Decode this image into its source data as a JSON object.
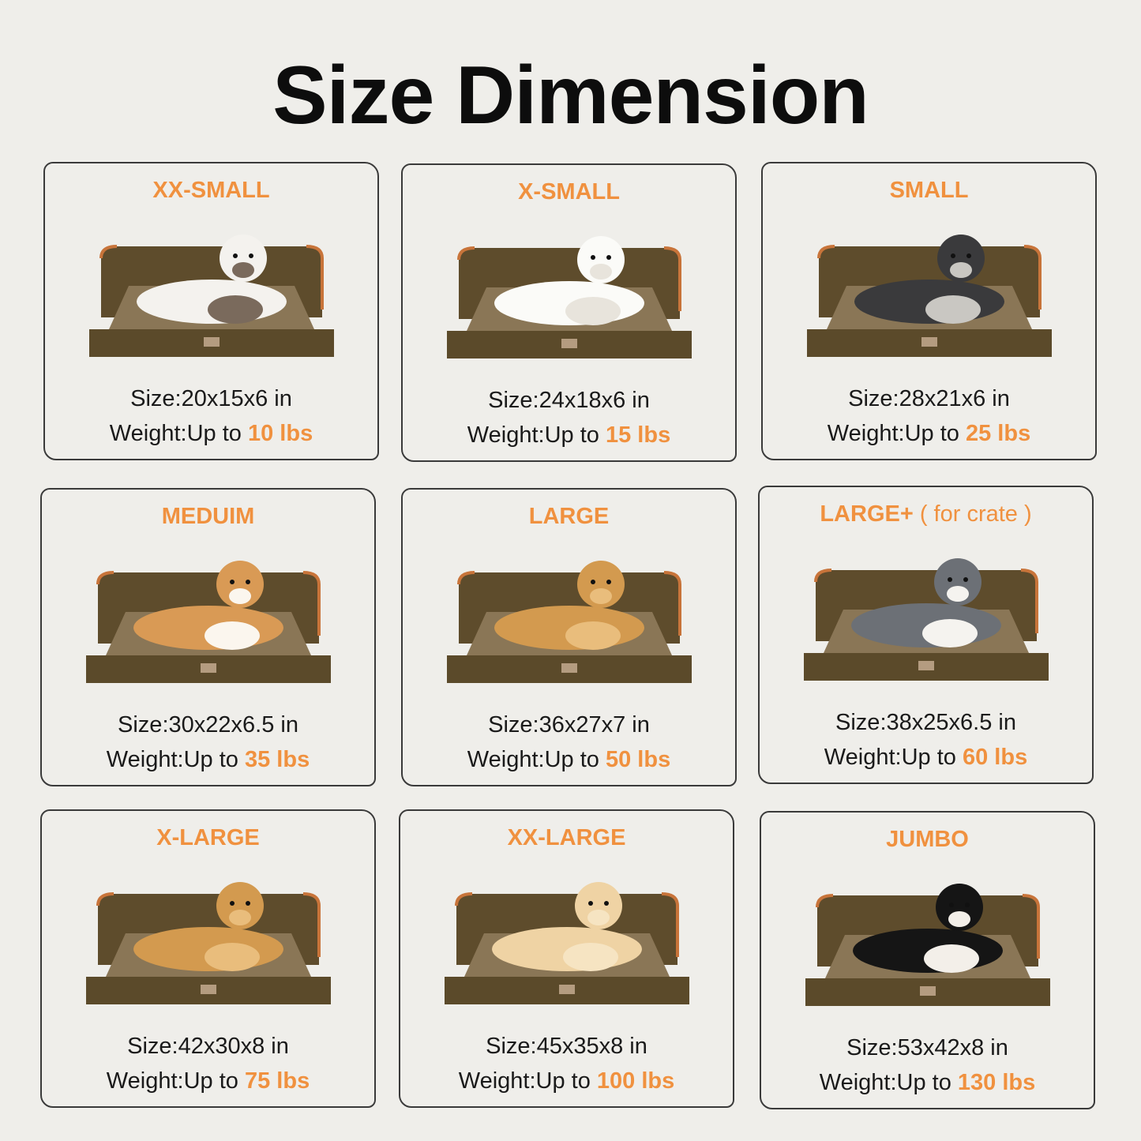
{
  "title": "Size Dimension",
  "colors": {
    "accent": "#f0913f",
    "bed": "#5b4a2a",
    "cushion": "#8a7656"
  },
  "size_prefix": "Size",
  "weight_prefix": "Weight",
  "weight_text": "Up to",
  "sizes": [
    {
      "name": "XX-SMALL",
      "note": "",
      "dims": "20x15x6 in",
      "weight": "10 lbs",
      "pet": "cat"
    },
    {
      "name": "X-SMALL",
      "note": "",
      "dims": "24x18x6 in",
      "weight": "15 lbs",
      "pet": "pomeranian"
    },
    {
      "name": "SMALL",
      "note": "",
      "dims": "28x21x6 in",
      "weight": "25 lbs",
      "pet": "schnauzer"
    },
    {
      "name": "MEDUIM",
      "note": "",
      "dims": "30x22x6.5 in",
      "weight": "35 lbs",
      "pet": "corgi"
    },
    {
      "name": "LARGE",
      "note": "",
      "dims": "36x27x7 in",
      "weight": "50 lbs",
      "pet": "golden-retriever"
    },
    {
      "name": "LARGE+",
      "note": "( for crate )",
      "dims": "38x25x6.5 in",
      "weight": "60 lbs",
      "pet": "australian-shepherd"
    },
    {
      "name": "X-LARGE",
      "note": "",
      "dims": "42x30x8 in",
      "weight": "75 lbs",
      "pet": "golden-retriever"
    },
    {
      "name": "XX-LARGE",
      "note": "",
      "dims": "45x35x8 in",
      "weight": "100 lbs",
      "pet": "labrador"
    },
    {
      "name": "JUMBO",
      "note": "",
      "dims": "53x42x8 in",
      "weight": "130 lbs",
      "pet": "bernese-mountain-dog"
    }
  ]
}
